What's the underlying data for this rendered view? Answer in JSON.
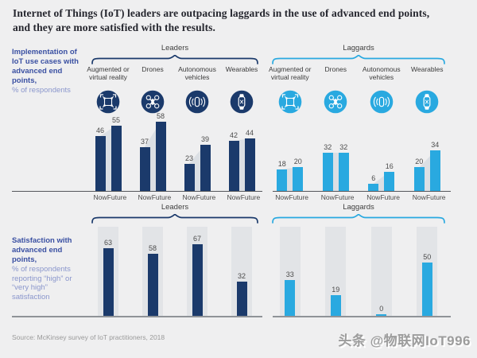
{
  "title": "Internet of Things (IoT) leaders are outpacing laggards in the use of advanced end points, and they are more satisfied with the results.",
  "left_labels": {
    "implementation_bold": "Implementation of IoT use cases with advanced end points,",
    "implementation_light": "% of respondents",
    "satisfaction_bold": "Satisfaction with advanced end points,",
    "satisfaction_light": "% of respondents reporting “high” or “very high” satisfaction"
  },
  "groups": {
    "leaders": "Leaders",
    "laggards": "Laggards"
  },
  "categories": [
    {
      "label": "Augmented or virtual reality",
      "icon": "ar-vr-icon"
    },
    {
      "label": "Drones",
      "icon": "drone-icon"
    },
    {
      "label": "Autonomous vehicles",
      "icon": "autonomous-vehicle-icon"
    },
    {
      "label": "Wearables",
      "icon": "wearables-icon"
    }
  ],
  "now_future": [
    "Now",
    "Future"
  ],
  "colors": {
    "navy": "#1b3a6b",
    "cyan": "#29a9e0",
    "growth_shadow": "#dbdfe4",
    "column_bg": "#e2e4e7"
  },
  "chart_data": [
    {
      "id": "implementation-leaders",
      "type": "bar",
      "group": "Leaders",
      "title": "Implementation of IoT use cases with advanced end points, % of respondents",
      "categories": [
        "Augmented or virtual reality",
        "Drones",
        "Autonomous vehicles",
        "Wearables"
      ],
      "x_tick_labels": [
        "Now",
        "Future"
      ],
      "series": [
        {
          "name": "Now",
          "values": [
            46,
            37,
            23,
            42
          ]
        },
        {
          "name": "Future",
          "values": [
            55,
            58,
            39,
            44
          ]
        }
      ],
      "ylim": [
        0,
        60
      ]
    },
    {
      "id": "implementation-laggards",
      "type": "bar",
      "group": "Laggards",
      "title": "Implementation of IoT use cases with advanced end points, % of respondents",
      "categories": [
        "Augmented or virtual reality",
        "Drones",
        "Autonomous vehicles",
        "Wearables"
      ],
      "x_tick_labels": [
        "Now",
        "Future"
      ],
      "series": [
        {
          "name": "Now",
          "values": [
            18,
            32,
            6,
            20
          ]
        },
        {
          "name": "Future",
          "values": [
            20,
            32,
            16,
            34
          ]
        }
      ],
      "ylim": [
        0,
        60
      ]
    },
    {
      "id": "satisfaction-leaders",
      "type": "bar",
      "group": "Leaders",
      "title": "Satisfaction with advanced end points, % of respondents reporting “high” or “very high” satisfaction",
      "categories": [
        "Augmented or virtual reality",
        "Drones",
        "Autonomous vehicles",
        "Wearables"
      ],
      "series": [
        {
          "name": "Satisfaction",
          "values": [
            63,
            58,
            67,
            32
          ]
        }
      ],
      "ylim": [
        0,
        80
      ]
    },
    {
      "id": "satisfaction-laggards",
      "type": "bar",
      "group": "Laggards",
      "title": "Satisfaction with advanced end points, % of respondents reporting “high” or “very high” satisfaction",
      "categories": [
        "Augmented or virtual reality",
        "Drones",
        "Autonomous vehicles",
        "Wearables"
      ],
      "series": [
        {
          "name": "Satisfaction",
          "values": [
            33,
            19,
            0,
            50
          ]
        }
      ],
      "ylim": [
        0,
        80
      ]
    }
  ],
  "source": "Source: McKinsey survey of IoT practitioners, 2018",
  "watermark": "头条 @物联网IoT996"
}
